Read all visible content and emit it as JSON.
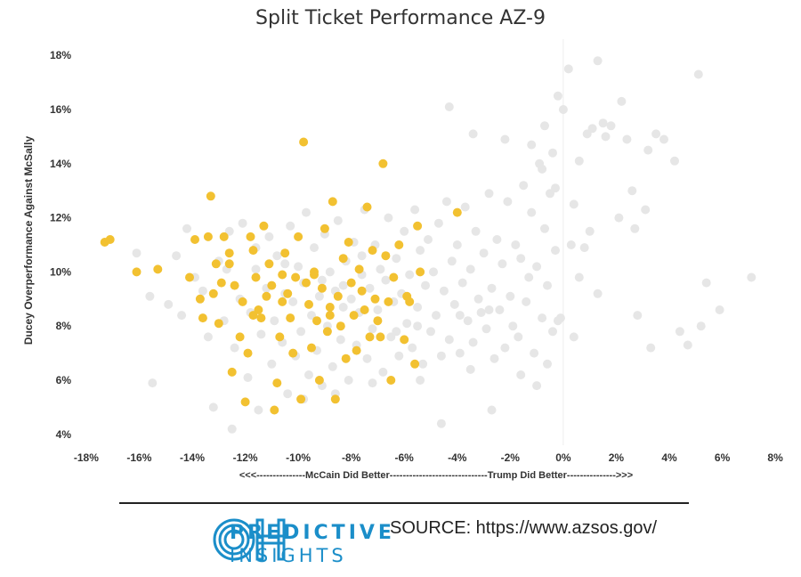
{
  "header": {
    "title": "Split Ticket Performance AZ-9"
  },
  "chart_data": {
    "type": "scatter",
    "title": "Split Ticket Performance AZ-9",
    "xlabel": "<<<---------------McCain Did Better------------------------------Trump Did Better--------------->>>",
    "ylabel": "Ducey Overperformance Against McSally",
    "xlim": [
      -18.5,
      8.5
    ],
    "ylim": [
      3.6,
      18.6
    ],
    "x_ticks": [
      "-18%",
      "-16%",
      "-14%",
      "-12%",
      "-10%",
      "-8%",
      "-6%",
      "-4%",
      "-2%",
      "0%",
      "2%",
      "4%",
      "6%",
      "8%"
    ],
    "x_tick_values": [
      -18,
      -16,
      -14,
      -12,
      -10,
      -8,
      -6,
      -4,
      -2,
      0,
      2,
      4,
      6,
      8
    ],
    "y_ticks": [
      "4%",
      "6%",
      "8%",
      "10%",
      "12%",
      "14%",
      "16%",
      "18%"
    ],
    "y_tick_values": [
      4,
      6,
      8,
      10,
      12,
      14,
      16,
      18
    ],
    "reference_line_x": 0,
    "grid": false,
    "series": [
      {
        "color": "#e6e6e6",
        "points": [
          [
            -16.1,
            10.7
          ],
          [
            -15.6,
            9.1
          ],
          [
            -15.5,
            5.9
          ],
          [
            -14.9,
            8.8
          ],
          [
            -14.6,
            10.6
          ],
          [
            -14.2,
            11.6
          ],
          [
            -13.9,
            9.8
          ],
          [
            -13.4,
            7.6
          ],
          [
            -13.2,
            5.0
          ],
          [
            -13.0,
            10.4
          ],
          [
            -12.8,
            8.2
          ],
          [
            -12.6,
            11.5
          ],
          [
            -12.4,
            7.2
          ],
          [
            -12.2,
            9.0
          ],
          [
            -12.1,
            11.8
          ],
          [
            -11.9,
            6.1
          ],
          [
            -11.8,
            8.5
          ],
          [
            -11.6,
            10.1
          ],
          [
            -11.5,
            4.9
          ],
          [
            -11.4,
            7.7
          ],
          [
            -11.2,
            9.4
          ],
          [
            -11.1,
            11.3
          ],
          [
            -11.0,
            6.6
          ],
          [
            -10.9,
            8.2
          ],
          [
            -10.8,
            10.6
          ],
          [
            -10.6,
            7.4
          ],
          [
            -10.5,
            9.2
          ],
          [
            -10.4,
            5.5
          ],
          [
            -10.3,
            11.7
          ],
          [
            -10.2,
            8.9
          ],
          [
            -10.1,
            6.9
          ],
          [
            -10.0,
            10.2
          ],
          [
            -9.9,
            7.8
          ],
          [
            -9.8,
            9.6
          ],
          [
            -9.7,
            12.2
          ],
          [
            -9.6,
            6.2
          ],
          [
            -9.5,
            8.4
          ],
          [
            -9.4,
            10.9
          ],
          [
            -9.3,
            7.1
          ],
          [
            -9.2,
            9.1
          ],
          [
            -9.1,
            5.8
          ],
          [
            -9.0,
            11.4
          ],
          [
            -8.9,
            8.0
          ],
          [
            -8.8,
            10.0
          ],
          [
            -8.7,
            6.5
          ],
          [
            -8.6,
            9.3
          ],
          [
            -8.5,
            11.9
          ],
          [
            -8.4,
            7.5
          ],
          [
            -8.3,
            8.7
          ],
          [
            -8.2,
            10.4
          ],
          [
            -8.1,
            6.0
          ],
          [
            -8.0,
            9.0
          ],
          [
            -7.9,
            11.1
          ],
          [
            -7.8,
            7.3
          ],
          [
            -7.7,
            8.5
          ],
          [
            -7.6,
            10.6
          ],
          [
            -7.5,
            12.3
          ],
          [
            -7.4,
            6.8
          ],
          [
            -7.3,
            9.4
          ],
          [
            -7.2,
            7.9
          ],
          [
            -7.1,
            11.0
          ],
          [
            -7.0,
            8.6
          ],
          [
            -6.9,
            10.1
          ],
          [
            -6.8,
            6.3
          ],
          [
            -6.7,
            9.7
          ],
          [
            -6.6,
            12.0
          ],
          [
            -6.5,
            7.6
          ],
          [
            -6.4,
            8.9
          ],
          [
            -6.3,
            10.5
          ],
          [
            -6.2,
            6.9
          ],
          [
            -6.1,
            9.2
          ],
          [
            -6.0,
            11.5
          ],
          [
            -5.9,
            8.1
          ],
          [
            -5.8,
            9.9
          ],
          [
            -5.7,
            7.2
          ],
          [
            -5.6,
            12.3
          ],
          [
            -5.5,
            8.7
          ],
          [
            -5.4,
            10.8
          ],
          [
            -5.3,
            6.6
          ],
          [
            -5.2,
            9.5
          ],
          [
            -5.1,
            11.2
          ],
          [
            -5.0,
            7.8
          ],
          [
            -4.9,
            10.0
          ],
          [
            -4.8,
            8.4
          ],
          [
            -4.7,
            11.8
          ],
          [
            -4.6,
            6.9
          ],
          [
            -4.5,
            9.3
          ],
          [
            -4.4,
            12.6
          ],
          [
            -4.3,
            7.5
          ],
          [
            -4.2,
            10.4
          ],
          [
            -4.1,
            8.8
          ],
          [
            -4.0,
            11.0
          ],
          [
            -3.9,
            7.0
          ],
          [
            -3.8,
            9.6
          ],
          [
            -3.7,
            12.4
          ],
          [
            -3.6,
            8.2
          ],
          [
            -3.5,
            10.1
          ],
          [
            -3.4,
            7.4
          ],
          [
            -3.3,
            11.5
          ],
          [
            -3.2,
            9.0
          ],
          [
            -3.1,
            8.5
          ],
          [
            -3.0,
            10.7
          ],
          [
            -2.9,
            7.9
          ],
          [
            -2.8,
            12.9
          ],
          [
            -2.7,
            9.4
          ],
          [
            -2.6,
            6.8
          ],
          [
            -2.5,
            11.2
          ],
          [
            -2.4,
            8.6
          ],
          [
            -2.3,
            10.3
          ],
          [
            -2.2,
            7.2
          ],
          [
            -2.1,
            12.6
          ],
          [
            -2.0,
            9.1
          ],
          [
            -1.9,
            8.0
          ],
          [
            -1.8,
            11.0
          ],
          [
            -1.7,
            7.6
          ],
          [
            -1.6,
            10.5
          ],
          [
            -1.5,
            13.2
          ],
          [
            -1.4,
            8.9
          ],
          [
            -1.3,
            9.8
          ],
          [
            -1.2,
            12.2
          ],
          [
            -1.1,
            7.0
          ],
          [
            -1.0,
            10.2
          ],
          [
            -0.9,
            14.0
          ],
          [
            -0.8,
            8.3
          ],
          [
            -0.7,
            11.6
          ],
          [
            -0.6,
            9.5
          ],
          [
            -0.5,
            12.9
          ],
          [
            -0.4,
            7.8
          ],
          [
            -0.3,
            10.8
          ],
          [
            -0.2,
            8.2
          ],
          [
            -4.3,
            16.1
          ],
          [
            -3.4,
            15.1
          ],
          [
            -2.2,
            14.9
          ],
          [
            -1.2,
            14.7
          ],
          [
            -0.7,
            15.4
          ],
          [
            -0.4,
            14.4
          ],
          [
            -0.8,
            13.8
          ],
          [
            -0.3,
            13.1
          ],
          [
            -0.2,
            16.5
          ],
          [
            0.2,
            17.5
          ],
          [
            0.0,
            16.0
          ],
          [
            0.6,
            14.1
          ],
          [
            0.9,
            15.1
          ],
          [
            1.3,
            17.8
          ],
          [
            1.5,
            15.5
          ],
          [
            1.8,
            15.4
          ],
          [
            2.2,
            16.3
          ],
          [
            1.1,
            15.3
          ],
          [
            1.6,
            15.0
          ],
          [
            2.4,
            14.9
          ],
          [
            2.6,
            13.0
          ],
          [
            3.1,
            12.3
          ],
          [
            3.5,
            15.1
          ],
          [
            3.8,
            14.9
          ],
          [
            3.2,
            14.5
          ],
          [
            4.2,
            14.1
          ],
          [
            5.1,
            17.3
          ],
          [
            0.4,
            12.5
          ],
          [
            1.0,
            11.5
          ],
          [
            2.1,
            12.0
          ],
          [
            2.7,
            11.6
          ],
          [
            0.8,
            10.9
          ],
          [
            1.3,
            9.2
          ],
          [
            0.6,
            9.8
          ],
          [
            0.3,
            11.0
          ],
          [
            2.8,
            8.4
          ],
          [
            3.3,
            7.2
          ],
          [
            4.4,
            7.8
          ],
          [
            4.7,
            7.3
          ],
          [
            5.2,
            8.0
          ],
          [
            5.4,
            9.6
          ],
          [
            5.9,
            8.6
          ],
          [
            7.1,
            9.8
          ],
          [
            0.4,
            7.6
          ],
          [
            -0.1,
            8.3
          ],
          [
            -0.6,
            6.6
          ],
          [
            -1.0,
            5.8
          ],
          [
            -2.7,
            4.9
          ],
          [
            -4.6,
            4.4
          ],
          [
            -9.8,
            5.3
          ],
          [
            -12.5,
            4.2
          ],
          [
            -8.6,
            5.5
          ],
          [
            -7.2,
            5.9
          ],
          [
            -5.4,
            6.0
          ],
          [
            -3.5,
            6.4
          ],
          [
            -1.6,
            6.2
          ],
          [
            -2.8,
            8.6
          ],
          [
            -3.9,
            8.4
          ],
          [
            -5.5,
            8.0
          ],
          [
            -6.3,
            7.8
          ],
          [
            -7.6,
            9.9
          ],
          [
            -8.3,
            9.5
          ],
          [
            -9.1,
            9.7
          ],
          [
            -10.5,
            10.3
          ],
          [
            -11.6,
            10.9
          ],
          [
            -12.7,
            10.1
          ],
          [
            -13.6,
            9.3
          ],
          [
            -14.4,
            8.4
          ]
        ]
      },
      {
        "color": "#f2c131",
        "points": [
          [
            -17.3,
            11.1
          ],
          [
            -17.1,
            11.2
          ],
          [
            -16.1,
            10.0
          ],
          [
            -15.3,
            10.1
          ],
          [
            -14.1,
            9.8
          ],
          [
            -13.9,
            11.2
          ],
          [
            -13.7,
            9.0
          ],
          [
            -13.6,
            8.3
          ],
          [
            -13.4,
            11.3
          ],
          [
            -13.3,
            12.8
          ],
          [
            -13.2,
            9.2
          ],
          [
            -13.1,
            10.3
          ],
          [
            -13.0,
            8.1
          ],
          [
            -12.9,
            9.6
          ],
          [
            -12.8,
            11.3
          ],
          [
            -12.6,
            10.3
          ],
          [
            -12.5,
            6.3
          ],
          [
            -12.4,
            9.5
          ],
          [
            -12.2,
            7.6
          ],
          [
            -12.1,
            8.9
          ],
          [
            -12.0,
            5.2
          ],
          [
            -11.9,
            7.0
          ],
          [
            -11.8,
            11.3
          ],
          [
            -11.7,
            10.8
          ],
          [
            -11.6,
            9.8
          ],
          [
            -11.5,
            8.6
          ],
          [
            -11.4,
            8.3
          ],
          [
            -11.3,
            11.7
          ],
          [
            -11.2,
            9.1
          ],
          [
            -11.1,
            10.3
          ],
          [
            -11.0,
            9.5
          ],
          [
            -10.9,
            4.9
          ],
          [
            -10.8,
            5.9
          ],
          [
            -10.7,
            7.6
          ],
          [
            -10.6,
            8.9
          ],
          [
            -10.5,
            10.7
          ],
          [
            -10.4,
            9.2
          ],
          [
            -10.3,
            8.3
          ],
          [
            -10.2,
            7.0
          ],
          [
            -10.1,
            9.8
          ],
          [
            -10.0,
            11.3
          ],
          [
            -9.9,
            5.3
          ],
          [
            -9.8,
            14.8
          ],
          [
            -9.7,
            9.6
          ],
          [
            -9.6,
            8.8
          ],
          [
            -9.5,
            7.2
          ],
          [
            -9.4,
            10.0
          ],
          [
            -9.3,
            8.2
          ],
          [
            -9.2,
            6.0
          ],
          [
            -9.1,
            9.4
          ],
          [
            -9.0,
            11.6
          ],
          [
            -8.9,
            7.8
          ],
          [
            -8.8,
            8.7
          ],
          [
            -8.7,
            12.6
          ],
          [
            -8.6,
            5.3
          ],
          [
            -8.5,
            9.1
          ],
          [
            -8.4,
            8.0
          ],
          [
            -8.3,
            10.5
          ],
          [
            -8.2,
            6.8
          ],
          [
            -8.1,
            11.1
          ],
          [
            -8.0,
            9.6
          ],
          [
            -7.9,
            8.4
          ],
          [
            -7.8,
            7.1
          ],
          [
            -7.7,
            10.1
          ],
          [
            -7.6,
            9.3
          ],
          [
            -7.5,
            8.6
          ],
          [
            -7.4,
            12.4
          ],
          [
            -7.3,
            7.6
          ],
          [
            -7.2,
            10.8
          ],
          [
            -7.1,
            9.0
          ],
          [
            -7.0,
            8.2
          ],
          [
            -6.9,
            7.6
          ],
          [
            -6.8,
            14.0
          ],
          [
            -6.7,
            10.6
          ],
          [
            -6.6,
            8.9
          ],
          [
            -6.5,
            6.0
          ],
          [
            -6.4,
            9.8
          ],
          [
            -6.2,
            11.0
          ],
          [
            -6.0,
            7.5
          ],
          [
            -5.8,
            8.9
          ],
          [
            -5.6,
            6.6
          ],
          [
            -5.5,
            11.7
          ],
          [
            -5.4,
            10.0
          ],
          [
            -4.0,
            12.2
          ],
          [
            -5.9,
            9.1
          ],
          [
            -12.6,
            10.7
          ],
          [
            -11.7,
            8.4
          ],
          [
            -10.6,
            9.9
          ],
          [
            -9.4,
            9.9
          ],
          [
            -8.8,
            8.4
          ]
        ]
      }
    ]
  },
  "footer": {
    "logo_lines": [
      "PREDICTIVE",
      "INSIGHTS"
    ],
    "source": "SOURCE: https://www.azsos.gov/"
  }
}
